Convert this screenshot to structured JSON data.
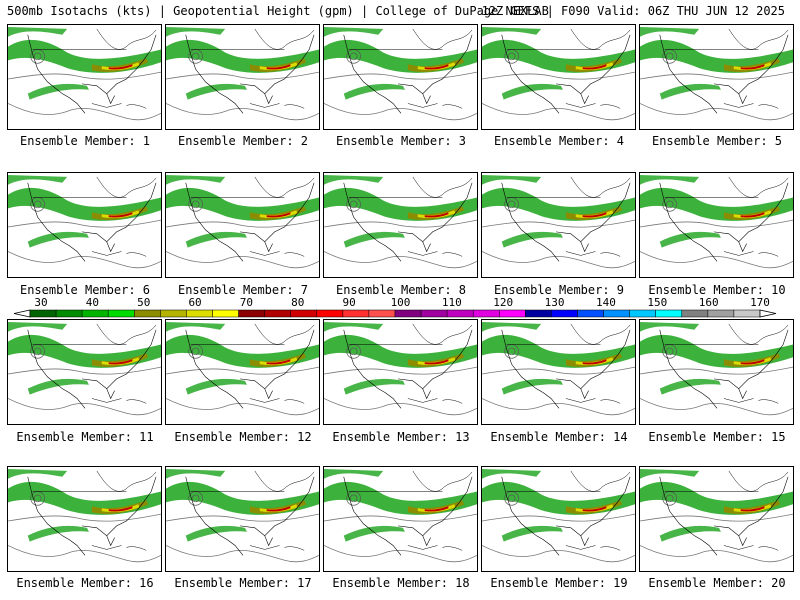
{
  "header": {
    "left": "500mb Isotachs (kts) | Geopotential Height (gpm) | College of DuPage NEXLAB",
    "right": "12Z GEFS | F090 Valid: 06Z THU JUN 12 2025"
  },
  "members": [
    "Ensemble Member: 1",
    "Ensemble Member: 2",
    "Ensemble Member: 3",
    "Ensemble Member: 4",
    "Ensemble Member: 5",
    "Ensemble Member: 6",
    "Ensemble Member: 7",
    "Ensemble Member: 8",
    "Ensemble Member: 9",
    "Ensemble Member: 10",
    "Ensemble Member: 11",
    "Ensemble Member: 12",
    "Ensemble Member: 13",
    "Ensemble Member: 14",
    "Ensemble Member: 15",
    "Ensemble Member: 16",
    "Ensemble Member: 17",
    "Ensemble Member: 18",
    "Ensemble Member: 19",
    "Ensemble Member: 20"
  ],
  "colorbar": {
    "labels": [
      "30",
      "40",
      "50",
      "60",
      "70",
      "80",
      "90",
      "100",
      "110",
      "120",
      "130",
      "140",
      "150",
      "160",
      "170"
    ],
    "colors": [
      "#006400",
      "#008c00",
      "#00b400",
      "#00dc00",
      "#8c8c00",
      "#b4b400",
      "#dcdc00",
      "#ffff00",
      "#8b0000",
      "#b00000",
      "#d00000",
      "#ff0000",
      "#ff3030",
      "#ff5050",
      "#800080",
      "#a000a0",
      "#c000c0",
      "#e000e0",
      "#ff00ff",
      "#0000a0",
      "#0000ff",
      "#0050ff",
      "#0090ff",
      "#00c8ff",
      "#00ffff",
      "#808080",
      "#a0a0a0",
      "#c8c8c8"
    ]
  }
}
